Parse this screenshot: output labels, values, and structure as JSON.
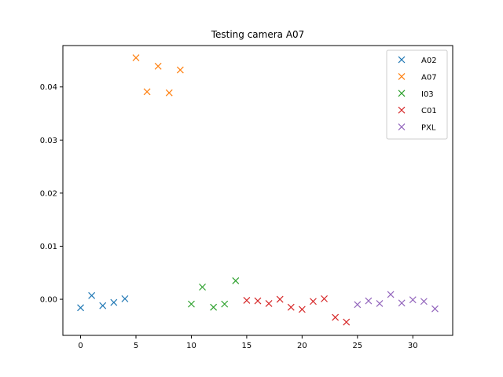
{
  "chart_data": {
    "type": "scatter",
    "title": "Testing camera A07",
    "xlabel": "",
    "ylabel": "",
    "xlim": [
      -1.6,
      33.6
    ],
    "ylim": [
      -0.0068,
      0.0478
    ],
    "xticks": [
      0,
      5,
      10,
      15,
      20,
      25,
      30
    ],
    "xtick_labels": [
      "0",
      "5",
      "10",
      "15",
      "20",
      "25",
      "30"
    ],
    "yticks": [
      0.0,
      0.01,
      0.02,
      0.03,
      0.04
    ],
    "ytick_labels": [
      "0.00",
      "0.01",
      "0.02",
      "0.03",
      "0.04"
    ],
    "grid": false,
    "legend_position": "top-right",
    "marker": "x",
    "series": [
      {
        "name": "A02",
        "color": "#1f77b4",
        "x": [
          0,
          1,
          2,
          3,
          4
        ],
        "y": [
          -0.0016,
          0.0007,
          -0.0012,
          -0.0006,
          0.0001
        ]
      },
      {
        "name": "A07",
        "color": "#ff7f0e",
        "x": [
          5,
          6,
          7,
          8,
          9
        ],
        "y": [
          0.0455,
          0.0391,
          0.0439,
          0.0389,
          0.0432
        ]
      },
      {
        "name": "I03",
        "color": "#2ca02c",
        "x": [
          10,
          11,
          12,
          13,
          14
        ],
        "y": [
          -0.0009,
          0.0023,
          -0.0015,
          -0.0009,
          0.0035
        ]
      },
      {
        "name": "C01",
        "color": "#d62728",
        "x": [
          15,
          16,
          17,
          18,
          19,
          20,
          21,
          22,
          23,
          24
        ],
        "y": [
          -0.0002,
          -0.0003,
          -0.0008,
          0.0,
          -0.0015,
          -0.0019,
          -0.0004,
          0.0001,
          -0.0034,
          -0.0043
        ]
      },
      {
        "name": "PXL",
        "color": "#9467bd",
        "x": [
          25,
          26,
          27,
          28,
          29,
          30,
          31,
          32
        ],
        "y": [
          -0.001,
          -0.0003,
          -0.0008,
          0.0009,
          -0.0007,
          -0.0001,
          -0.0004,
          -0.0018
        ]
      }
    ]
  }
}
